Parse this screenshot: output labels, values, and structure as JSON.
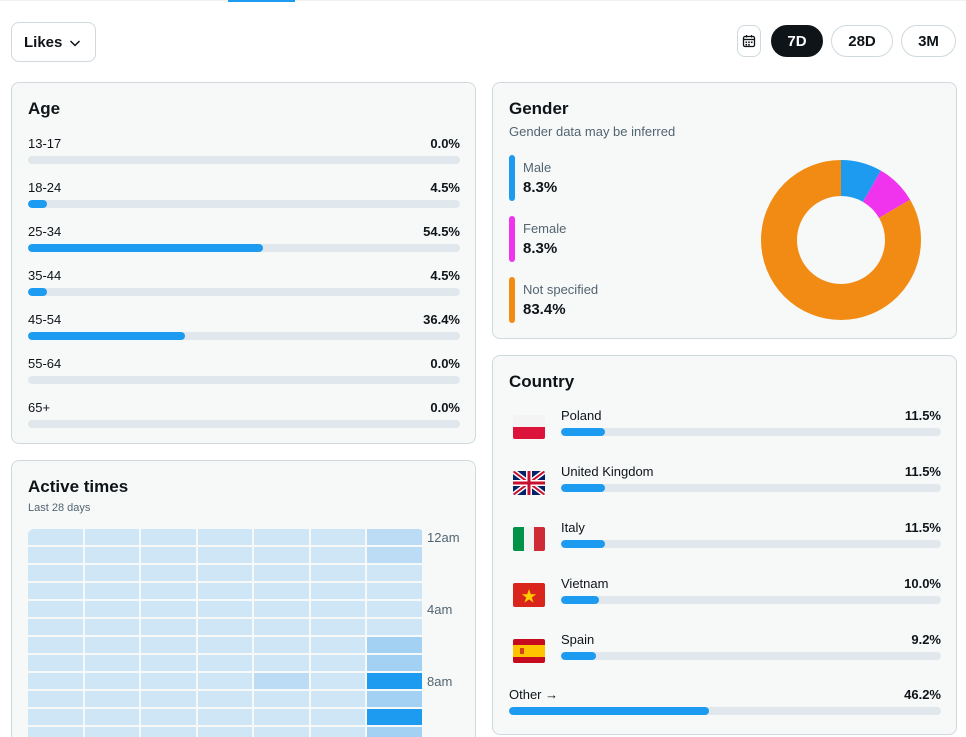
{
  "metric_select": {
    "label": "Likes"
  },
  "ranges": [
    "7D",
    "28D",
    "3M"
  ],
  "age": {
    "title": "Age",
    "rows": [
      {
        "label": "13-17",
        "value": "0.0%",
        "pct": 0.0
      },
      {
        "label": "18-24",
        "value": "4.5%",
        "pct": 4.5
      },
      {
        "label": "25-34",
        "value": "54.5%",
        "pct": 54.5
      },
      {
        "label": "35-44",
        "value": "4.5%",
        "pct": 4.5
      },
      {
        "label": "45-54",
        "value": "36.4%",
        "pct": 36.4
      },
      {
        "label": "55-64",
        "value": "0.0%",
        "pct": 0.0
      },
      {
        "label": "65+",
        "value": "0.0%",
        "pct": 0.0
      }
    ]
  },
  "gender": {
    "title": "Gender",
    "subtitle": "Gender data may be inferred",
    "items": [
      {
        "label": "Male",
        "value": "8.3%",
        "pct": 8.3,
        "color": "#1d9bf0"
      },
      {
        "label": "Female",
        "value": "8.3%",
        "pct": 8.3,
        "color": "#f033ec"
      },
      {
        "label": "Not specified",
        "value": "83.4%",
        "pct": 83.4,
        "color": "#f28b14"
      }
    ]
  },
  "country": {
    "title": "Country",
    "rows": [
      {
        "label": "Poland",
        "value": "11.5%",
        "pct": 11.5,
        "flag": "flag-poland"
      },
      {
        "label": "United Kingdom",
        "value": "11.5%",
        "pct": 11.5,
        "flag": "flag-uk"
      },
      {
        "label": "Italy",
        "value": "11.5%",
        "pct": 11.5,
        "flag": "flag-italy"
      },
      {
        "label": "Vietnam",
        "value": "10.0%",
        "pct": 10.0,
        "flag": "flag-vietnam"
      },
      {
        "label": "Spain",
        "value": "9.2%",
        "pct": 9.2,
        "flag": "flag-spain"
      }
    ],
    "other": {
      "label": "Other →",
      "value": "46.2%",
      "pct": 46.2
    }
  },
  "active_times": {
    "title": "Active times",
    "subtitle": "Last 28 days",
    "time_labels": [
      "12am",
      "4am",
      "8am"
    ],
    "heat_levels": [
      [
        1,
        1,
        1,
        1,
        1,
        1,
        2
      ],
      [
        1,
        1,
        1,
        1,
        1,
        1,
        2
      ],
      [
        1,
        1,
        1,
        1,
        1,
        1,
        1
      ],
      [
        1,
        1,
        1,
        1,
        1,
        1,
        1
      ],
      [
        1,
        1,
        1,
        1,
        1,
        1,
        1
      ],
      [
        1,
        1,
        1,
        1,
        1,
        1,
        1
      ],
      [
        1,
        1,
        1,
        1,
        1,
        1,
        3
      ],
      [
        1,
        1,
        1,
        1,
        1,
        1,
        3
      ],
      [
        1,
        1,
        1,
        1,
        2,
        1,
        5
      ],
      [
        1,
        1,
        1,
        1,
        1,
        1,
        3
      ],
      [
        1,
        1,
        1,
        1,
        1,
        1,
        5
      ],
      [
        1,
        1,
        1,
        1,
        1,
        1,
        3
      ]
    ],
    "heat_colors": [
      "#eaf4fb",
      "#cfe6f6",
      "#bbdcf4",
      "#a3d1f3",
      "#6cbaf1",
      "#1d9bf0"
    ]
  },
  "colors": {
    "accent": "#1d9bf0",
    "track": "#e1e8ed",
    "dark": "#0f1419"
  }
}
